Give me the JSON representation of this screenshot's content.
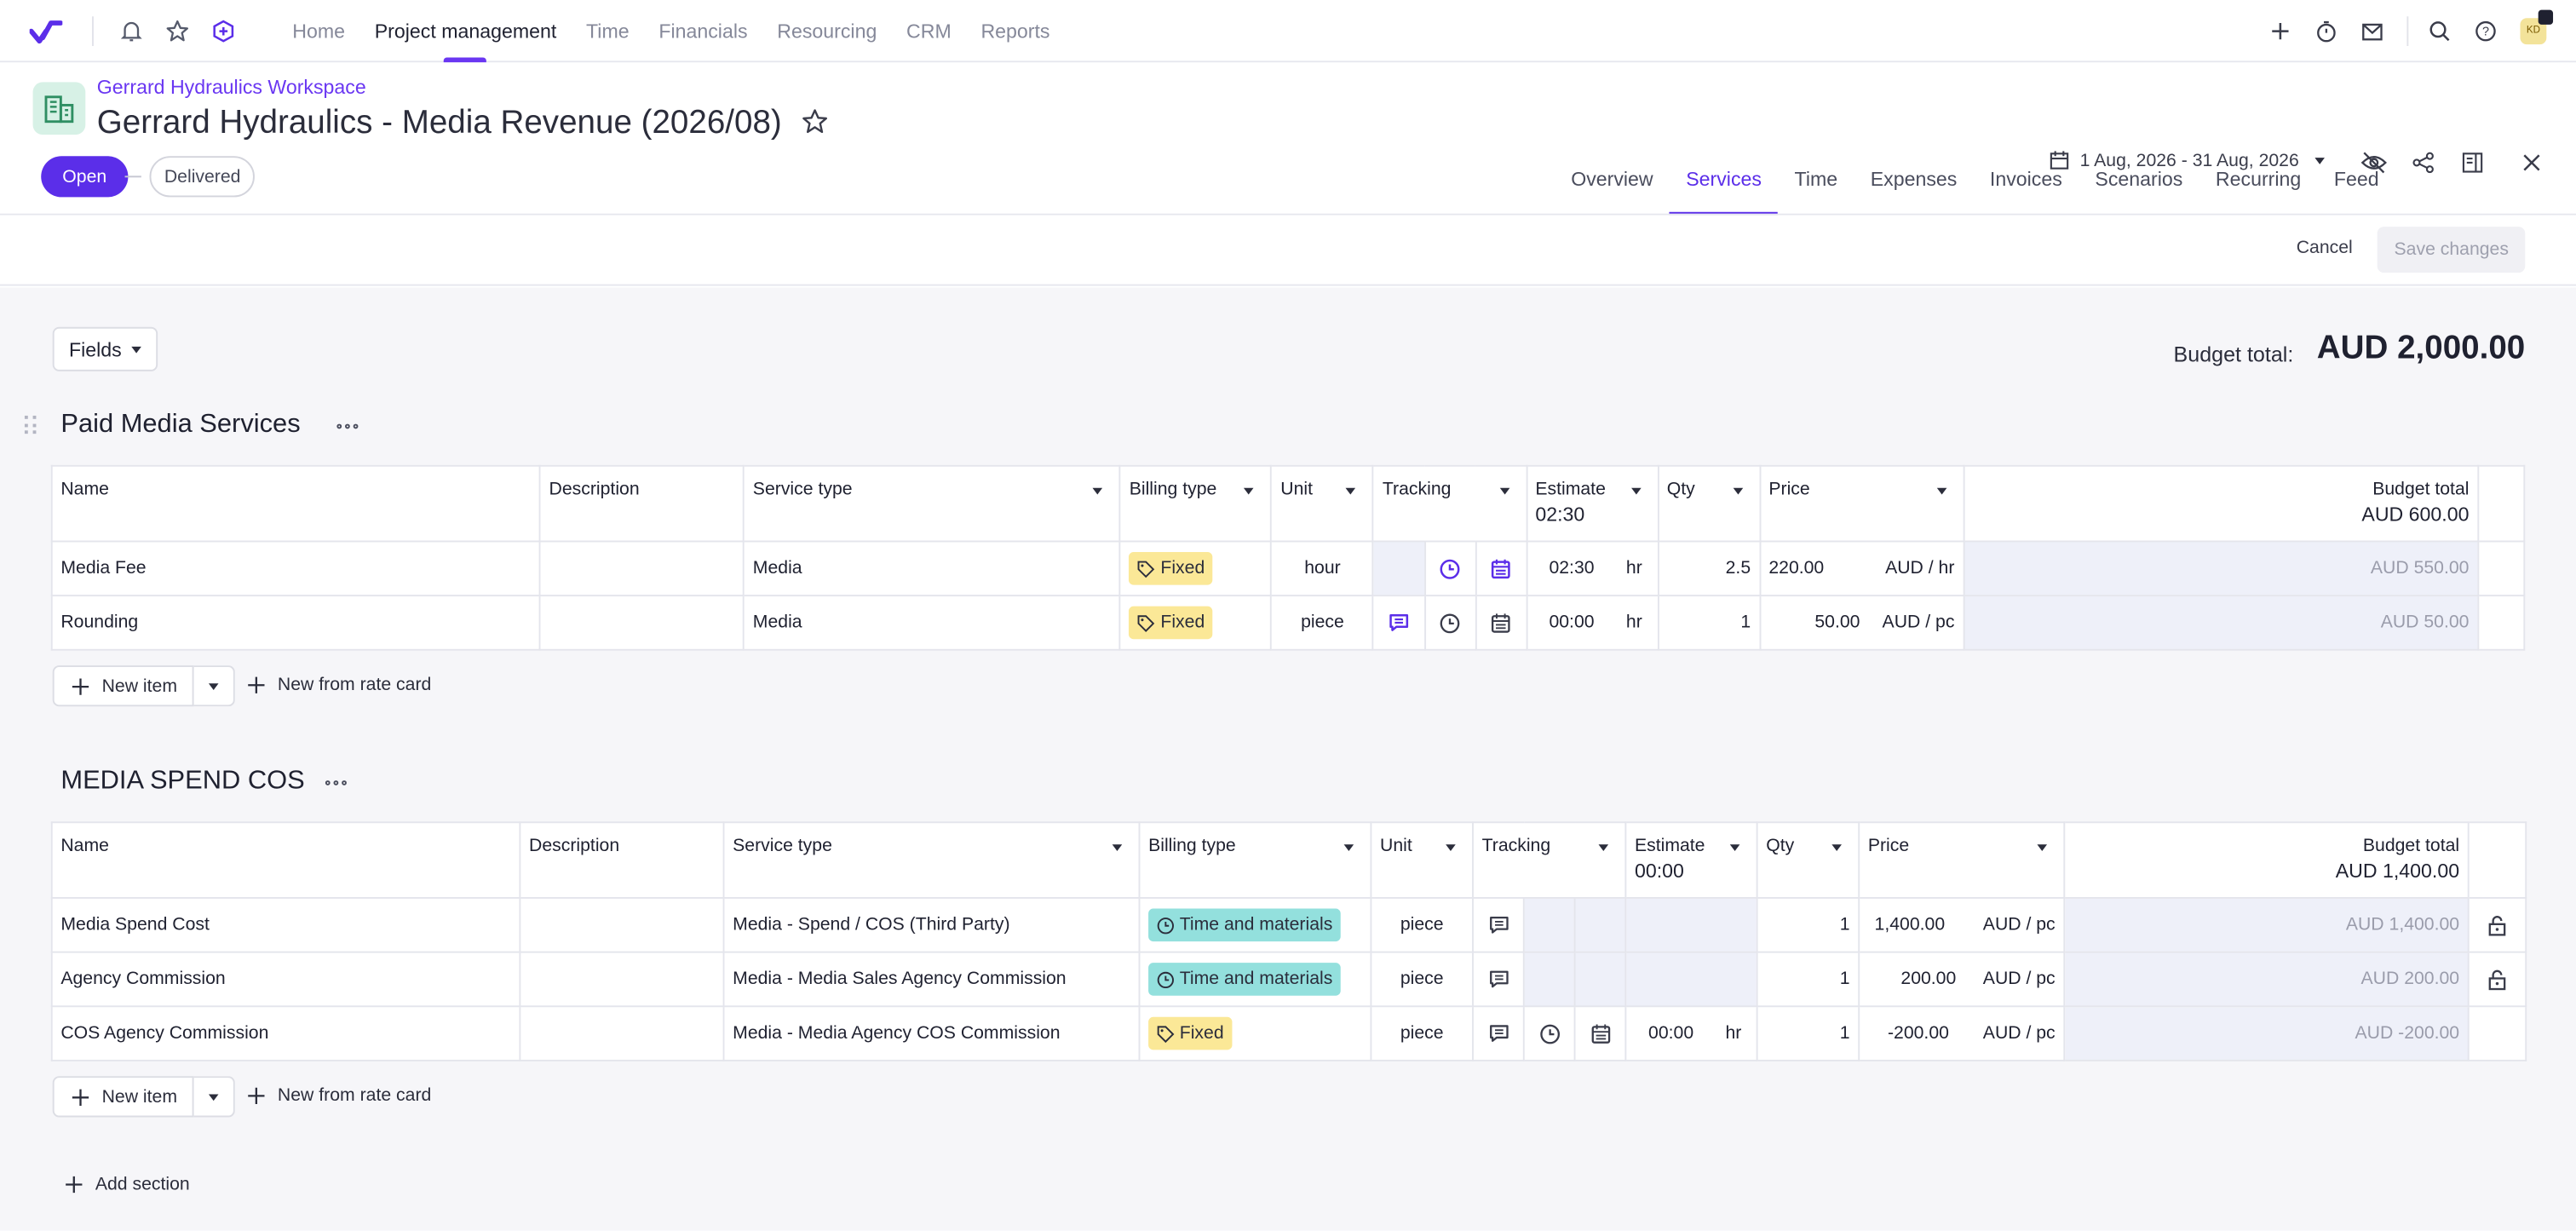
{
  "nav": {
    "items": [
      "Home",
      "Project management",
      "Time",
      "Financials",
      "Resourcing",
      "CRM",
      "Reports"
    ],
    "active": "Project management",
    "avatar_initials": "KD"
  },
  "project": {
    "workspace": "Gerrard Hydraulics Workspace",
    "title": "Gerrard Hydraulics - Media Revenue (2026/08)",
    "status_open": "Open",
    "status_delivered": "Delivered",
    "date_range": "1 Aug, 2026 - 31 Aug, 2026"
  },
  "tabs": [
    "Overview",
    "Services",
    "Time",
    "Expenses",
    "Invoices",
    "Scenarios",
    "Recurring",
    "Feed"
  ],
  "actions": {
    "cancel": "Cancel",
    "save": "Save changes"
  },
  "toolbar": {
    "fields": "Fields",
    "budget_total_label": "Budget total:",
    "budget_total_value": "AUD 2,000.00"
  },
  "columns": {
    "name": "Name",
    "description": "Description",
    "service_type": "Service type",
    "billing_type": "Billing type",
    "unit": "Unit",
    "tracking": "Tracking",
    "estimate": "Estimate",
    "qty": "Qty",
    "price": "Price",
    "budget_total": "Budget total"
  },
  "sections": [
    {
      "title": "Paid Media Services",
      "estimate_total": "02:30",
      "budget_total": "AUD 600.00",
      "rows": [
        {
          "name": "Media Fee",
          "description": "",
          "service_type": "Media",
          "billing_type": "Fixed",
          "unit": "hour",
          "estimate": "02:30",
          "est_unit": "hr",
          "qty": "2.5",
          "price": "220.00",
          "price_unit": "AUD / hr",
          "budget": "AUD 550.00"
        },
        {
          "name": "Rounding",
          "description": "",
          "service_type": "Media",
          "billing_type": "Fixed",
          "unit": "piece",
          "estimate": "00:00",
          "est_unit": "hr",
          "qty": "1",
          "price": "50.00",
          "price_unit": "AUD / pc",
          "budget": "AUD 50.00"
        }
      ]
    },
    {
      "title": "MEDIA SPEND COS",
      "estimate_total": "00:00",
      "budget_total": "AUD 1,400.00",
      "rows": [
        {
          "name": "Media Spend Cost",
          "description": "",
          "service_type": "Media - Spend / COS (Third Party)",
          "billing_type": "Time and materials",
          "unit": "piece",
          "estimate": "",
          "est_unit": "",
          "qty": "1",
          "price": "1,400.00",
          "price_unit": "AUD / pc",
          "budget": "AUD 1,400.00"
        },
        {
          "name": "Agency Commission",
          "description": "",
          "service_type": "Media - Media Sales Agency Commission",
          "billing_type": "Time and materials",
          "unit": "piece",
          "estimate": "",
          "est_unit": "",
          "qty": "1",
          "price": "200.00",
          "price_unit": "AUD / pc",
          "budget": "AUD 200.00"
        },
        {
          "name": "COS Agency Commission",
          "description": "",
          "service_type": "Media - Media Agency COS Commission",
          "billing_type": "Fixed",
          "unit": "piece",
          "estimate": "00:00",
          "est_unit": "hr",
          "qty": "1",
          "price": "-200.00",
          "price_unit": "AUD / pc",
          "budget": "AUD -200.00"
        }
      ]
    }
  ],
  "buttons": {
    "new_item": "New item",
    "new_from_rate_card": "New from rate card",
    "add_section": "Add section"
  },
  "colors": {
    "accent": "#5b2ee9",
    "fixed_tag": "#fbe897",
    "tm_tag": "#93e0dd"
  }
}
